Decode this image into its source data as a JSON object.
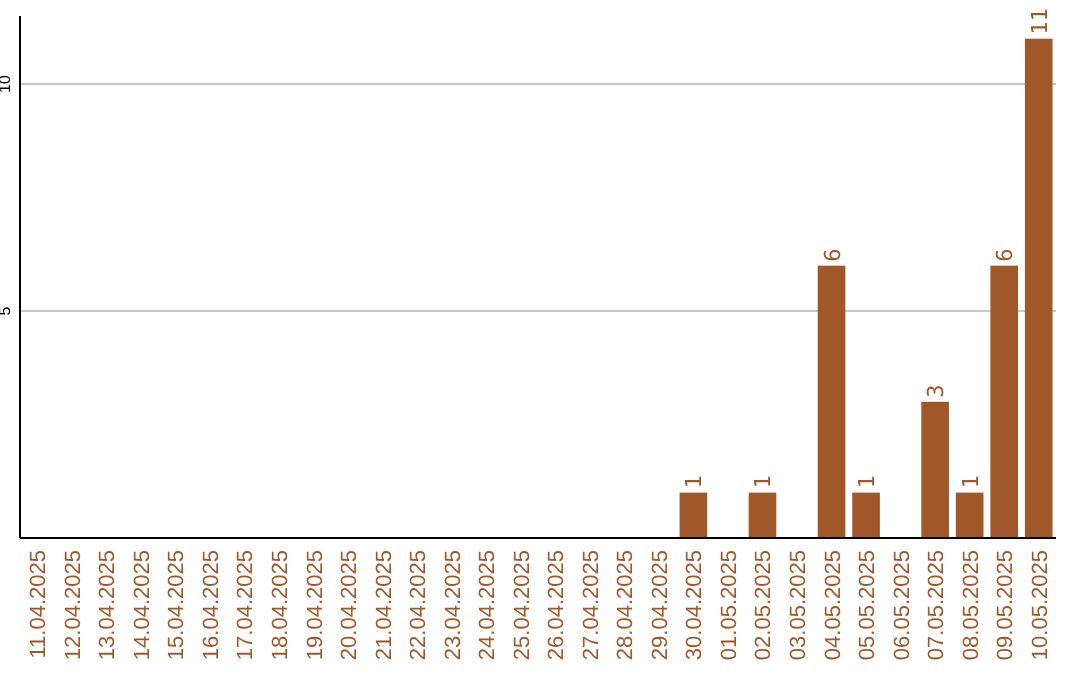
{
  "chart_data": {
    "type": "bar",
    "categories": [
      "11.04.2025",
      "12.04.2025",
      "13.04.2025",
      "14.04.2025",
      "15.04.2025",
      "16.04.2025",
      "17.04.2025",
      "18.04.2025",
      "19.04.2025",
      "20.04.2025",
      "21.04.2025",
      "22.04.2025",
      "23.04.2025",
      "24.04.2025",
      "25.04.2025",
      "26.04.2025",
      "27.04.2025",
      "28.04.2025",
      "29.04.2025",
      "30.04.2025",
      "01.05.2025",
      "02.05.2025",
      "03.05.2025",
      "04.05.2025",
      "05.05.2025",
      "06.05.2025",
      "07.05.2025",
      "08.05.2025",
      "09.05.2025",
      "10.05.2025"
    ],
    "values": [
      0,
      0,
      0,
      0,
      0,
      0,
      0,
      0,
      0,
      0,
      0,
      0,
      0,
      0,
      0,
      0,
      0,
      0,
      0,
      1,
      0,
      1,
      0,
      6,
      1,
      0,
      3,
      1,
      6,
      11
    ],
    "value_labels": [
      null,
      null,
      null,
      null,
      null,
      null,
      null,
      null,
      null,
      null,
      null,
      null,
      null,
      null,
      null,
      null,
      null,
      null,
      null,
      "1",
      null,
      "1",
      null,
      "6",
      "1",
      null,
      "3",
      "1",
      "6",
      "11"
    ],
    "color": "#a0582a",
    "ylim": [
      0,
      11.5
    ],
    "yticks": [
      5,
      10
    ],
    "grid": "y"
  }
}
